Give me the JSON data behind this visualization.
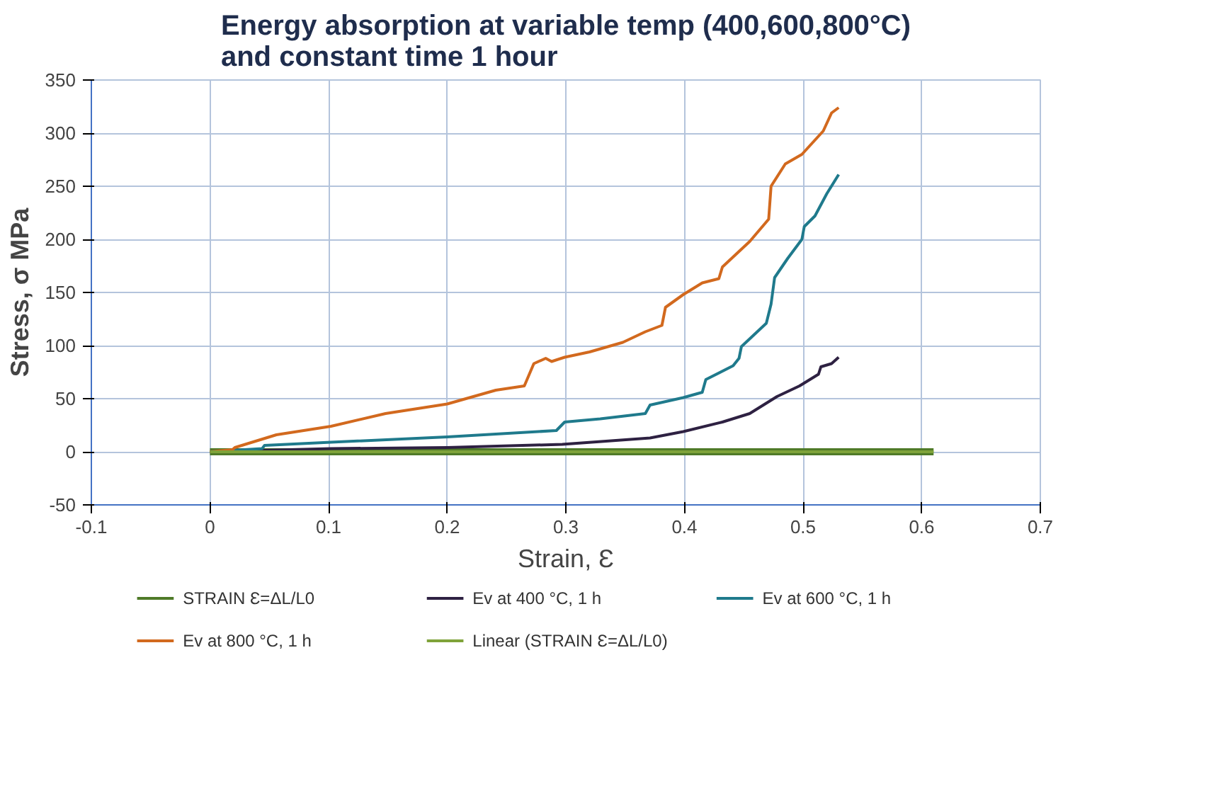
{
  "chart_data": {
    "type": "line",
    "title": "Energy absorption at variable temp (400,600,800°C)\nand constant time 1 hour",
    "xlabel": "Strain, Ɛ",
    "ylabel": "Stress, σ MPa",
    "xlim": [
      -0.1,
      0.7
    ],
    "xticks": [
      -0.1,
      0,
      0.1,
      0.2,
      0.3,
      0.4,
      0.5,
      0.6,
      0.7
    ],
    "ylim": [
      -50,
      350
    ],
    "yticks": [
      -50,
      0,
      50,
      100,
      150,
      200,
      250,
      300,
      350
    ],
    "grid": true,
    "legend": "bottom",
    "series": [
      {
        "name": "STRAIN Ɛ=ΔL/L0",
        "color": "#4f7a28",
        "x": [
          0,
          0.61
        ],
        "values": [
          0,
          0
        ]
      },
      {
        "name": "Ev at 400 °C, 1 h",
        "color": "#2e2142",
        "x": [
          0,
          0.102,
          0.2,
          0.297,
          0.371,
          0.399,
          0.432,
          0.455,
          0.478,
          0.497,
          0.513,
          0.515,
          0.524,
          0.53
        ],
        "values": [
          0,
          3,
          4,
          7,
          13,
          19,
          28,
          36,
          52,
          62,
          73,
          80,
          83,
          89
        ]
      },
      {
        "name": "Ev at 600 °C, 1 h",
        "color": "#1f7a8c",
        "x": [
          0,
          0.044,
          0.046,
          0.102,
          0.2,
          0.292,
          0.299,
          0.329,
          0.367,
          0.371,
          0.399,
          0.415,
          0.418,
          0.441,
          0.446,
          0.448,
          0.469,
          0.473,
          0.476,
          0.487,
          0.499,
          0.501,
          0.51,
          0.52,
          0.53
        ],
        "values": [
          0,
          3,
          6,
          9,
          14,
          20,
          28,
          31,
          36,
          44,
          51,
          56,
          68,
          81,
          88,
          99,
          121,
          139,
          164,
          182,
          200,
          212,
          222,
          243,
          261
        ]
      },
      {
        "name": "Ev at 800 °C, 1 h",
        "color": "#d2691e",
        "x": [
          0,
          0.019,
          0.021,
          0.056,
          0.102,
          0.148,
          0.2,
          0.241,
          0.265,
          0.273,
          0.283,
          0.288,
          0.299,
          0.32,
          0.348,
          0.367,
          0.381,
          0.384,
          0.399,
          0.415,
          0.429,
          0.432,
          0.455,
          0.471,
          0.473,
          0.485,
          0.499,
          0.517,
          0.524,
          0.53
        ],
        "values": [
          0,
          2,
          4,
          16,
          24,
          36,
          45,
          58,
          62,
          83,
          88,
          85,
          89,
          94,
          103,
          113,
          119,
          136,
          148,
          159,
          163,
          174,
          198,
          219,
          250,
          271,
          280,
          302,
          319,
          324
        ]
      },
      {
        "name": "Linear (STRAIN Ɛ=ΔL/L0)",
        "color": "#7fa33a",
        "x": [
          0,
          0.61
        ],
        "values": [
          0,
          0
        ]
      }
    ]
  }
}
